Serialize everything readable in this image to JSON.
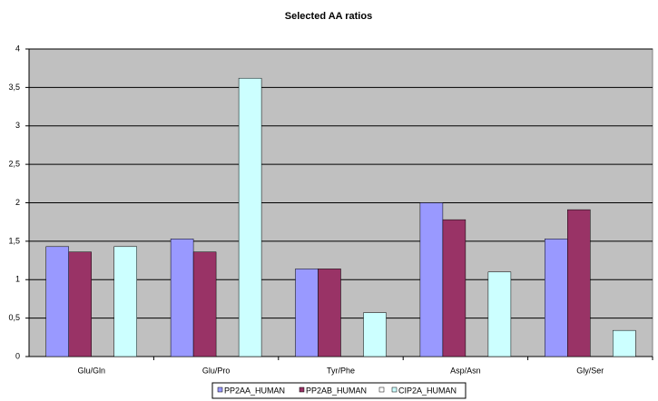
{
  "chart_data": {
    "type": "bar",
    "title": "Selected AA ratios",
    "categories": [
      "Glu/Gln",
      "Glu/Pro",
      "Tyr/Phe",
      "Asp/Asn",
      "Gly/Ser"
    ],
    "series": [
      {
        "name": "PP2AA_HUMAN",
        "color": "#9999ff",
        "values": [
          1.43,
          1.53,
          1.14,
          2.0,
          1.53
        ]
      },
      {
        "name": "PP2AB_HUMAN",
        "color": "#993366",
        "values": [
          1.36,
          1.36,
          1.14,
          1.78,
          1.91
        ]
      },
      {
        "name": "CIP2A_HUMAN",
        "color": "#ccffff",
        "values": [
          1.43,
          3.62,
          0.57,
          1.1,
          0.34
        ]
      }
    ],
    "ylim": [
      0,
      4
    ],
    "yticks": [
      0,
      {
        "value": 0.5,
        "label": "0,5"
      },
      1,
      {
        "value": 1.5,
        "label": "1,5"
      },
      2,
      {
        "value": 2.5,
        "label": "2,5"
      },
      3,
      {
        "value": 3.5,
        "label": "3,5"
      },
      4
    ],
    "grid": true,
    "background": "#c0c0c0",
    "legend": "bottom"
  }
}
